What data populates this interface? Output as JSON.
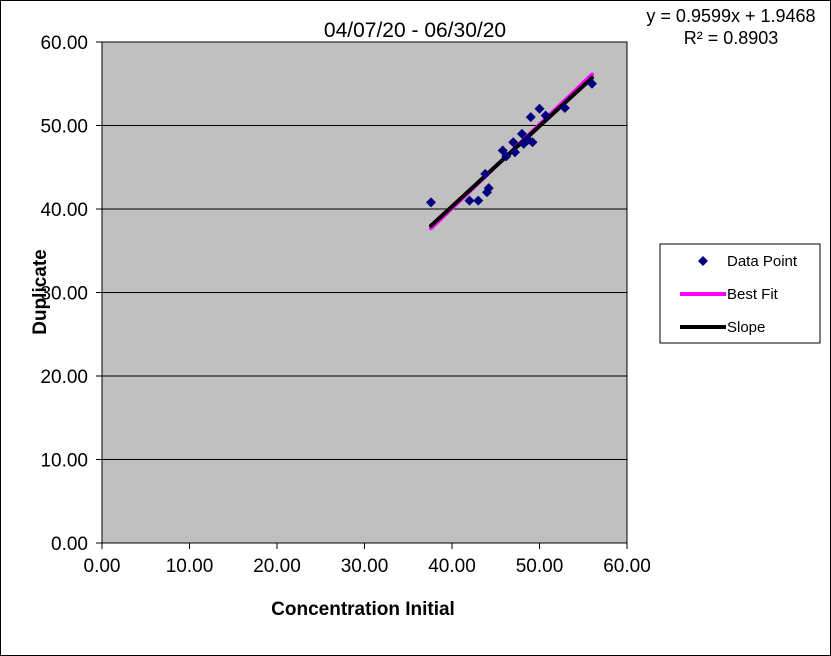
{
  "chart_data": {
    "type": "scatter",
    "title": "04/07/20 - 06/30/20",
    "annotation": [
      "y = 0.9599x + 1.9468",
      "R² = 0.8903"
    ],
    "xlabel": "Concentration Initial",
    "ylabel": "Duplicate",
    "xlim": [
      0,
      60
    ],
    "ylim": [
      0,
      60
    ],
    "x_ticks": [
      "0.00",
      "10.00",
      "20.00",
      "30.00",
      "40.00",
      "50.00",
      "60.00"
    ],
    "y_ticks": [
      "0.00",
      "10.00",
      "20.00",
      "30.00",
      "40.00",
      "50.00",
      "60.00"
    ],
    "grid": "horizontal",
    "legend_position": "right",
    "legend": [
      "Data Point",
      "Best Fit",
      "Slope"
    ],
    "colors": {
      "plot_bg": "#c0c0c0",
      "points": "#000080",
      "best_fit": "#ff00ff",
      "slope": "#000000"
    },
    "series": [
      {
        "name": "Data Point",
        "kind": "scatter",
        "points": [
          [
            37.6,
            40.8
          ],
          [
            42.0,
            41.0
          ],
          [
            43.0,
            41.0
          ],
          [
            43.8,
            44.2
          ],
          [
            44.0,
            42.0
          ],
          [
            44.2,
            42.5
          ],
          [
            45.8,
            47.0
          ],
          [
            46.2,
            46.3
          ],
          [
            47.0,
            48.0
          ],
          [
            47.2,
            46.8
          ],
          [
            48.0,
            49.0
          ],
          [
            48.2,
            47.8
          ],
          [
            48.7,
            48.3
          ],
          [
            49.0,
            51.0
          ],
          [
            49.2,
            48.0
          ],
          [
            50.0,
            52.0
          ],
          [
            50.7,
            51.2
          ],
          [
            52.9,
            52.1
          ],
          [
            56.0,
            55.0
          ]
        ]
      },
      {
        "name": "Best Fit",
        "kind": "line",
        "points": [
          [
            37.6,
            37.7
          ],
          [
            56.0,
            56.1
          ]
        ]
      },
      {
        "name": "Slope",
        "kind": "line",
        "points": [
          [
            37.6,
            38.0
          ],
          [
            56.0,
            55.7
          ]
        ]
      }
    ]
  }
}
